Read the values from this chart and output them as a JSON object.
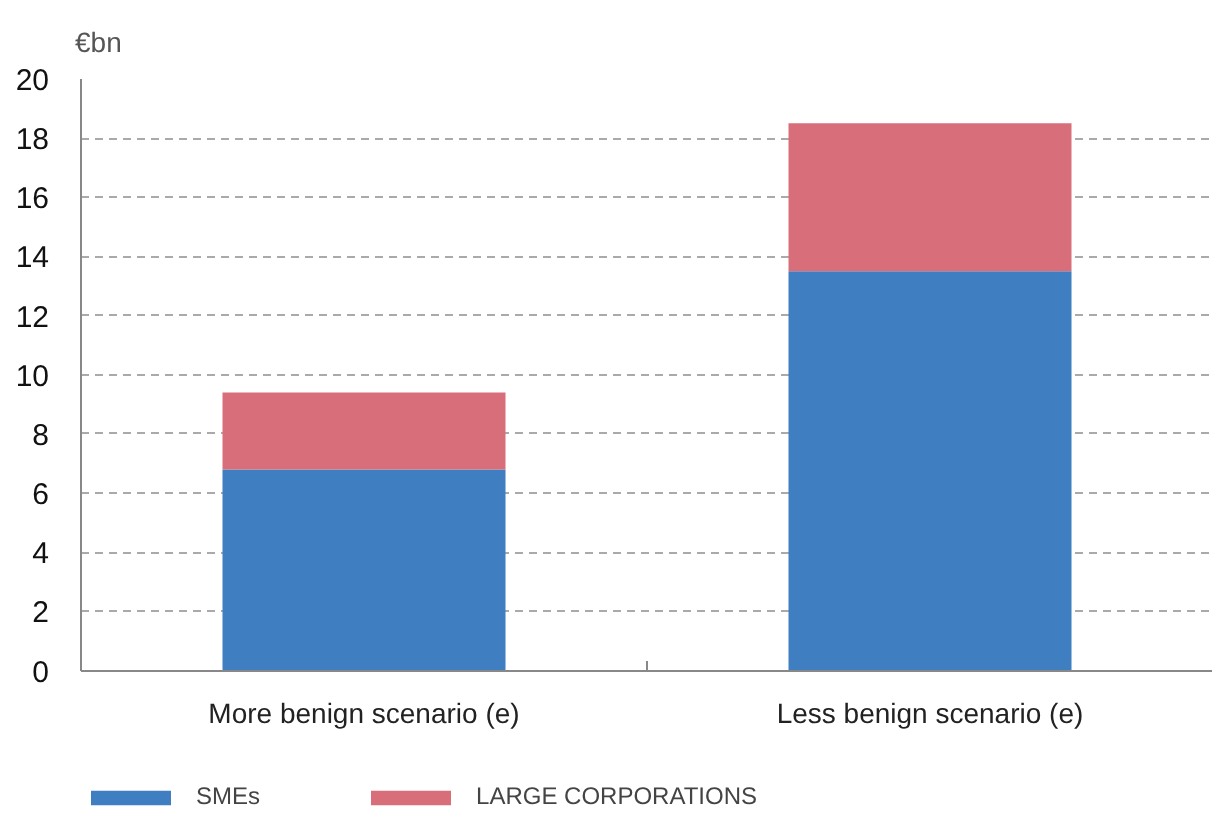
{
  "chart_data": {
    "type": "bar",
    "ylabel": "€bn",
    "categories": [
      "More benign scenario (e)",
      "Less benign scenario (e)"
    ],
    "stacked": true,
    "series": [
      {
        "name": "SMEs",
        "color": "#3f7fc1",
        "values": [
          6.8,
          13.5
        ]
      },
      {
        "name": "LARGE CORPORATIONS",
        "color": "#d86e7a",
        "values": [
          2.6,
          5.0
        ]
      }
    ],
    "ylim": [
      0,
      20
    ],
    "yticks": [
      0,
      2,
      4,
      6,
      8,
      10,
      12,
      14,
      16,
      18,
      20
    ],
    "grid": "y",
    "legend": "bottom"
  }
}
